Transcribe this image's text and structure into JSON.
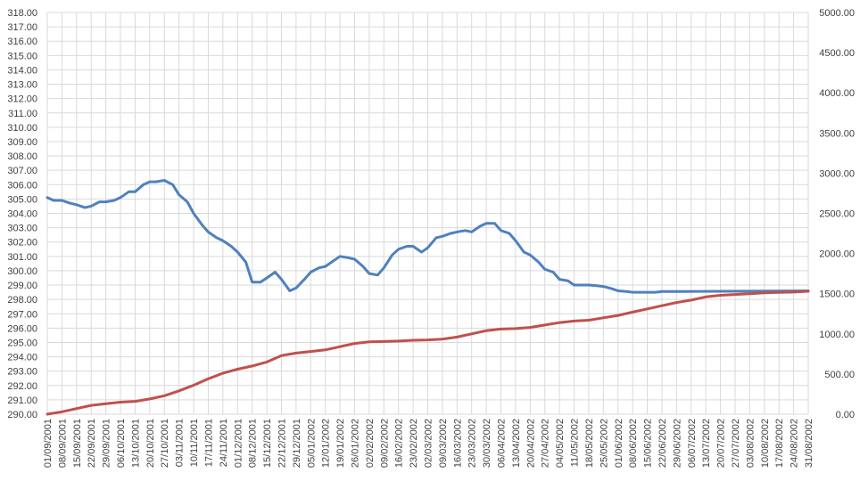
{
  "chart_data": {
    "type": "line",
    "title": "",
    "xlabel": "",
    "ylabel": "",
    "y2label": "",
    "grid": true,
    "legend": "none",
    "x_tick_labels": [
      "01/09/2001",
      "08/09/2001",
      "15/09/2001",
      "22/09/2001",
      "29/09/2001",
      "06/10/2001",
      "13/10/2001",
      "20/10/2001",
      "27/10/2001",
      "03/11/2001",
      "10/11/2001",
      "17/11/2001",
      "24/11/2001",
      "01/12/2001",
      "08/12/2001",
      "15/12/2001",
      "22/12/2001",
      "29/12/2001",
      "05/01/2002",
      "12/01/2002",
      "19/01/2002",
      "26/01/2002",
      "02/02/2002",
      "09/02/2002",
      "16/02/2002",
      "23/02/2002",
      "02/03/2002",
      "09/03/2002",
      "16/03/2002",
      "23/03/2002",
      "30/03/2002",
      "06/04/2002",
      "13/04/2002",
      "20/04/2002",
      "27/04/2002",
      "04/05/2002",
      "11/05/2002",
      "18/05/2002",
      "25/05/2002",
      "01/06/2002",
      "08/06/2002",
      "15/06/2002",
      "22/06/2002",
      "29/06/2002",
      "06/07/2002",
      "13/07/2002",
      "20/07/2002",
      "27/07/2002",
      "03/08/2002",
      "10/08/2002",
      "17/08/2002",
      "24/08/2002",
      "31/08/2002"
    ],
    "y_ticks": [
      "290.00",
      "291.00",
      "292.00",
      "293.00",
      "294.00",
      "295.00",
      "296.00",
      "297.00",
      "298.00",
      "299.00",
      "300.00",
      "301.00",
      "302.00",
      "303.00",
      "304.00",
      "305.00",
      "306.00",
      "307.00",
      "308.00",
      "309.00",
      "310.00",
      "311.00",
      "312.00",
      "313.00",
      "314.00",
      "315.00",
      "316.00",
      "317.00",
      "318.00"
    ],
    "y2_ticks": [
      "0.00",
      "500.00",
      "1000.00",
      "1500.00",
      "2000.00",
      "2500.00",
      "3000.00",
      "3500.00",
      "4000.00",
      "4500.00",
      "5000.00"
    ],
    "ylim": [
      290,
      318
    ],
    "y2lim": [
      0,
      5000
    ],
    "series": [
      {
        "axis": "left",
        "color": "#4f81bd",
        "points": [
          [
            "01/09/2001",
            305.1
          ],
          [
            "04/09/2001",
            304.9
          ],
          [
            "08/09/2001",
            304.9
          ],
          [
            "12/09/2001",
            304.7
          ],
          [
            "15/09/2001",
            304.6
          ],
          [
            "19/09/2001",
            304.4
          ],
          [
            "22/09/2001",
            304.5
          ],
          [
            "26/09/2001",
            304.8
          ],
          [
            "29/09/2001",
            304.8
          ],
          [
            "03/10/2001",
            304.9
          ],
          [
            "06/10/2001",
            305.1
          ],
          [
            "10/10/2001",
            305.5
          ],
          [
            "13/10/2001",
            305.5
          ],
          [
            "17/10/2001",
            306.0
          ],
          [
            "20/10/2001",
            306.2
          ],
          [
            "23/10/2001",
            306.2
          ],
          [
            "27/10/2001",
            306.3
          ],
          [
            "31/10/2001",
            306.0
          ],
          [
            "03/11/2001",
            305.3
          ],
          [
            "07/11/2001",
            304.8
          ],
          [
            "10/11/2001",
            304.0
          ],
          [
            "14/11/2001",
            303.2
          ],
          [
            "17/11/2001",
            302.7
          ],
          [
            "21/11/2001",
            302.3
          ],
          [
            "24/11/2001",
            302.1
          ],
          [
            "28/11/2001",
            301.7
          ],
          [
            "01/12/2001",
            301.3
          ],
          [
            "05/12/2001",
            300.6
          ],
          [
            "08/12/2001",
            299.2
          ],
          [
            "12/12/2001",
            299.2
          ],
          [
            "15/12/2001",
            299.5
          ],
          [
            "19/12/2001",
            299.9
          ],
          [
            "22/12/2001",
            299.4
          ],
          [
            "26/12/2001",
            298.6
          ],
          [
            "29/12/2001",
            298.8
          ],
          [
            "02/01/2002",
            299.4
          ],
          [
            "05/01/2002",
            299.9
          ],
          [
            "09/01/2002",
            300.2
          ],
          [
            "12/01/2002",
            300.3
          ],
          [
            "16/01/2002",
            300.7
          ],
          [
            "19/01/2002",
            301.0
          ],
          [
            "23/01/2002",
            300.9
          ],
          [
            "26/01/2002",
            300.8
          ],
          [
            "30/01/2002",
            300.3
          ],
          [
            "02/02/2002",
            299.8
          ],
          [
            "06/02/2002",
            299.7
          ],
          [
            "09/02/2002",
            300.2
          ],
          [
            "13/02/2002",
            301.1
          ],
          [
            "16/02/2002",
            301.5
          ],
          [
            "20/02/2002",
            301.7
          ],
          [
            "23/02/2002",
            301.7
          ],
          [
            "27/02/2002",
            301.3
          ],
          [
            "02/03/2002",
            301.6
          ],
          [
            "06/03/2002",
            302.3
          ],
          [
            "09/03/2002",
            302.4
          ],
          [
            "13/03/2002",
            302.6
          ],
          [
            "16/03/2002",
            302.7
          ],
          [
            "20/03/2002",
            302.8
          ],
          [
            "23/03/2002",
            302.7
          ],
          [
            "27/03/2002",
            303.1
          ],
          [
            "30/03/2002",
            303.3
          ],
          [
            "03/04/2002",
            303.3
          ],
          [
            "06/04/2002",
            302.8
          ],
          [
            "10/04/2002",
            302.6
          ],
          [
            "13/04/2002",
            302.1
          ],
          [
            "17/04/2002",
            301.3
          ],
          [
            "20/04/2002",
            301.1
          ],
          [
            "24/04/2002",
            300.6
          ],
          [
            "27/04/2002",
            300.1
          ],
          [
            "01/05/2002",
            299.9
          ],
          [
            "04/05/2002",
            299.4
          ],
          [
            "08/05/2002",
            299.3
          ],
          [
            "11/05/2002",
            299.0
          ],
          [
            "15/05/2002",
            299.0
          ],
          [
            "18/05/2002",
            299.0
          ],
          [
            "22/05/2002",
            298.95
          ],
          [
            "25/05/2002",
            298.9
          ],
          [
            "29/05/2002",
            298.75
          ],
          [
            "01/06/2002",
            298.6
          ],
          [
            "05/06/2002",
            298.55
          ],
          [
            "08/06/2002",
            298.5
          ],
          [
            "12/06/2002",
            298.5
          ],
          [
            "15/06/2002",
            298.5
          ],
          [
            "19/06/2002",
            298.5
          ],
          [
            "22/06/2002",
            298.55
          ],
          [
            "31/08/2002",
            298.6
          ]
        ]
      },
      {
        "axis": "right",
        "color": "#c0504d",
        "points": [
          [
            "01/09/2001",
            0
          ],
          [
            "08/09/2001",
            30
          ],
          [
            "15/09/2001",
            70
          ],
          [
            "22/09/2001",
            110
          ],
          [
            "29/09/2001",
            130
          ],
          [
            "06/10/2001",
            150
          ],
          [
            "13/10/2001",
            160
          ],
          [
            "20/10/2001",
            190
          ],
          [
            "27/10/2001",
            230
          ],
          [
            "03/11/2001",
            290
          ],
          [
            "10/11/2001",
            360
          ],
          [
            "17/11/2001",
            440
          ],
          [
            "24/11/2001",
            510
          ],
          [
            "01/12/2001",
            560
          ],
          [
            "08/12/2001",
            600
          ],
          [
            "15/12/2001",
            650
          ],
          [
            "22/12/2001",
            730
          ],
          [
            "29/12/2001",
            760
          ],
          [
            "05/01/2002",
            780
          ],
          [
            "12/01/2002",
            800
          ],
          [
            "19/01/2002",
            840
          ],
          [
            "26/01/2002",
            880
          ],
          [
            "02/02/2002",
            900
          ],
          [
            "09/02/2002",
            905
          ],
          [
            "16/02/2002",
            910
          ],
          [
            "23/02/2002",
            920
          ],
          [
            "02/03/2002",
            925
          ],
          [
            "09/03/2002",
            935
          ],
          [
            "16/03/2002",
            960
          ],
          [
            "23/03/2002",
            1000
          ],
          [
            "30/03/2002",
            1040
          ],
          [
            "06/04/2002",
            1060
          ],
          [
            "13/04/2002",
            1065
          ],
          [
            "20/04/2002",
            1080
          ],
          [
            "27/04/2002",
            1110
          ],
          [
            "04/05/2002",
            1140
          ],
          [
            "11/05/2002",
            1160
          ],
          [
            "18/05/2002",
            1170
          ],
          [
            "25/05/2002",
            1200
          ],
          [
            "01/06/2002",
            1230
          ],
          [
            "08/06/2002",
            1270
          ],
          [
            "15/06/2002",
            1310
          ],
          [
            "22/06/2002",
            1350
          ],
          [
            "29/06/2002",
            1390
          ],
          [
            "06/07/2002",
            1420
          ],
          [
            "13/07/2002",
            1460
          ],
          [
            "20/07/2002",
            1480
          ],
          [
            "27/07/2002",
            1490
          ],
          [
            "03/08/2002",
            1500
          ],
          [
            "10/08/2002",
            1510
          ],
          [
            "17/08/2002",
            1515
          ],
          [
            "24/08/2002",
            1520
          ],
          [
            "31/08/2002",
            1530
          ]
        ]
      }
    ]
  }
}
